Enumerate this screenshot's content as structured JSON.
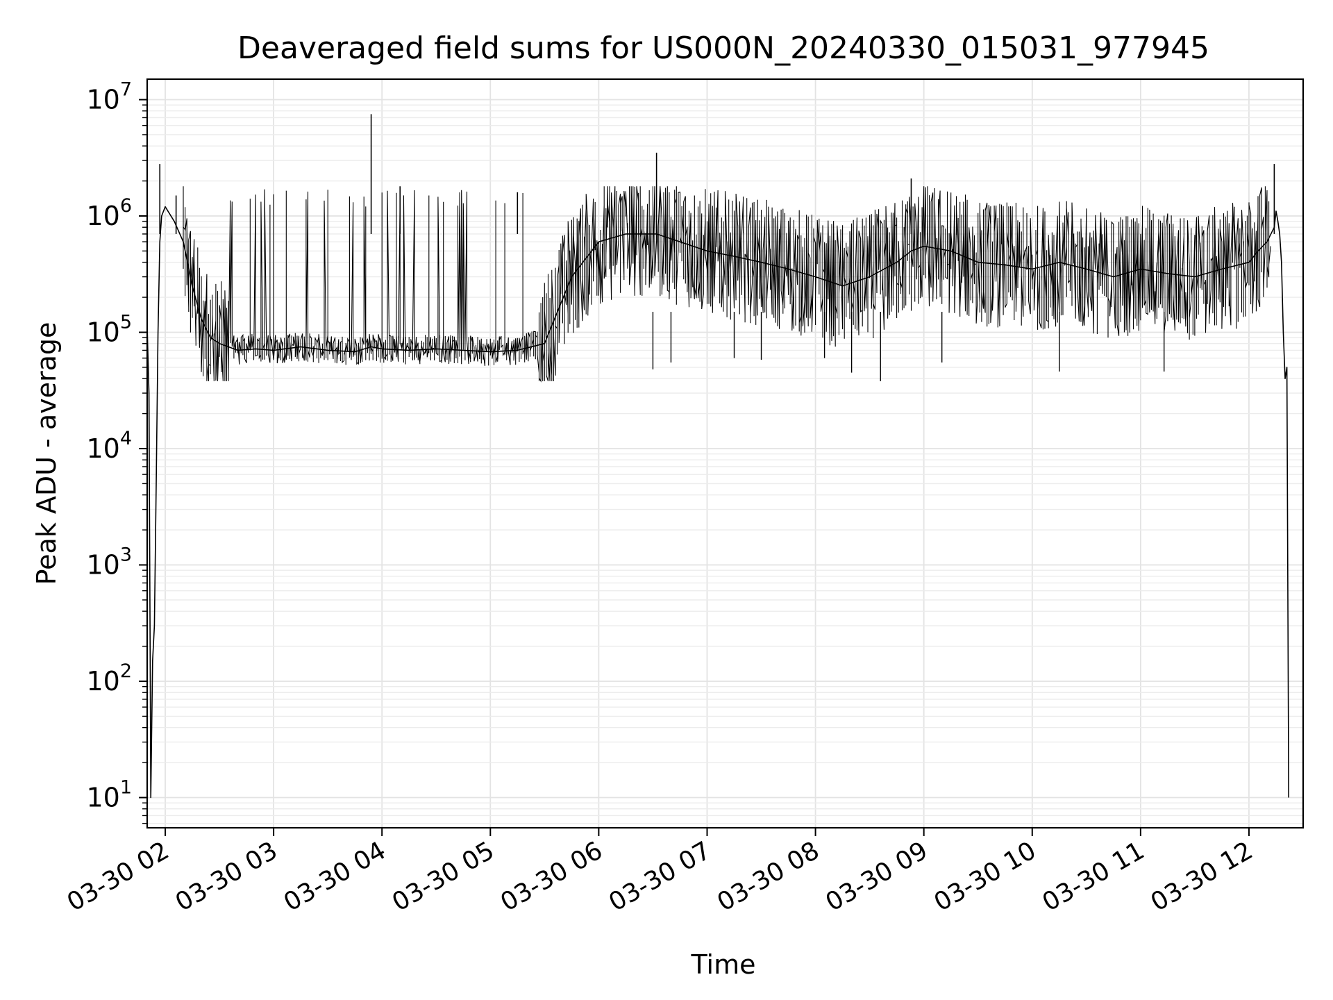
{
  "chart_data": {
    "type": "line",
    "title": "Deaveraged field sums for US000N_20240330_015031_977945",
    "xlabel": "Time",
    "ylabel": "Peak ADU - average",
    "yscale": "log",
    "xlim": [
      "2024-03-30 01:50",
      "2024-03-30 12:30"
    ],
    "ylim": [
      5.5,
      15000000
    ],
    "grid": true,
    "legend": "none",
    "line_color": "#000000",
    "x_tick_labels": [
      "03-30 02",
      "03-30 03",
      "03-30 04",
      "03-30 05",
      "03-30 06",
      "03-30 07",
      "03-30 08",
      "03-30 09",
      "03-30 10",
      "03-30 11",
      "03-30 12"
    ],
    "y_tick_labels": [
      {
        "base": "10",
        "exp": "1"
      },
      {
        "base": "10",
        "exp": "2"
      },
      {
        "base": "10",
        "exp": "3"
      },
      {
        "base": "10",
        "exp": "4"
      },
      {
        "base": "10",
        "exp": "5"
      },
      {
        "base": "10",
        "exp": "6"
      },
      {
        "base": "10",
        "exp": "7"
      }
    ],
    "series": [
      {
        "x": [
          "2024-03-30 01:50",
          "2024-03-30 01:51",
          "2024-03-30 01:52",
          "2024-03-30 01:53",
          "2024-03-30 01:54",
          "2024-03-30 01:55",
          "2024-03-30 01:56",
          "2024-03-30 01:57",
          "2024-03-30 01:58",
          "2024-03-30 02:00",
          "2024-03-30 02:05",
          "2024-03-30 02:10",
          "2024-03-30 02:15",
          "2024-03-30 02:20",
          "2024-03-30 02:25",
          "2024-03-30 02:30",
          "2024-03-30 02:35",
          "2024-03-30 02:40",
          "2024-03-30 02:50",
          "2024-03-30 03:00",
          "2024-03-30 03:15",
          "2024-03-30 03:30",
          "2024-03-30 03:45",
          "2024-03-30 03:54",
          "2024-03-30 04:00",
          "2024-03-30 04:15",
          "2024-03-30 04:30",
          "2024-03-30 04:45",
          "2024-03-30 05:00",
          "2024-03-30 05:15",
          "2024-03-30 05:30",
          "2024-03-30 05:45",
          "2024-03-30 06:00",
          "2024-03-30 06:15",
          "2024-03-30 06:32",
          "2024-03-30 06:45",
          "2024-03-30 07:00",
          "2024-03-30 07:15",
          "2024-03-30 07:30",
          "2024-03-30 07:45",
          "2024-03-30 08:00",
          "2024-03-30 08:15",
          "2024-03-30 08:30",
          "2024-03-30 08:45",
          "2024-03-30 08:53",
          "2024-03-30 09:00",
          "2024-03-30 09:15",
          "2024-03-30 09:30",
          "2024-03-30 09:45",
          "2024-03-30 10:00",
          "2024-03-30 10:15",
          "2024-03-30 10:30",
          "2024-03-30 10:45",
          "2024-03-30 11:00",
          "2024-03-30 11:15",
          "2024-03-30 11:30",
          "2024-03-30 11:45",
          "2024-03-30 12:00",
          "2024-03-30 12:05",
          "2024-03-30 12:10",
          "2024-03-30 12:14",
          "2024-03-30 12:15",
          "2024-03-30 12:16",
          "2024-03-30 12:17",
          "2024-03-30 12:18",
          "2024-03-30 12:19",
          "2024-03-30 12:20",
          "2024-03-30 12:21",
          "2024-03-30 12:22"
        ],
        "y": [
          110000,
          30000,
          10,
          150,
          300,
          5000,
          100000,
          600000,
          1000000,
          1200000,
          900000,
          600000,
          250000,
          130000,
          90000,
          80000,
          75000,
          70000,
          72000,
          70000,
          75000,
          70000,
          68000,
          75000,
          72000,
          70000,
          72000,
          70000,
          68000,
          70000,
          80000,
          300000,
          600000,
          700000,
          700000,
          600000,
          500000,
          450000,
          400000,
          350000,
          300000,
          250000,
          300000,
          400000,
          500000,
          550000,
          500000,
          400000,
          380000,
          350000,
          400000,
          350000,
          300000,
          350000,
          320000,
          300000,
          350000,
          400000,
          500000,
          600000,
          800000,
          1100000,
          900000,
          700000,
          400000,
          100000,
          40000,
          50000,
          10
        ]
      },
      {
        "x": [
          "2024-03-30 01:57",
          "2024-03-30 02:06",
          "2024-03-30 03:54",
          "2024-03-30 04:10",
          "2024-03-30 05:15",
          "2024-03-30 06:32",
          "2024-03-30 08:53",
          "2024-03-30 12:14"
        ],
        "y": [
          2800000,
          1500000,
          7500000,
          1800000,
          1600000,
          3500000,
          2100000,
          2800000
        ]
      },
      {
        "x": [
          "2024-03-30 06:30",
          "2024-03-30 06:40",
          "2024-03-30 07:15",
          "2024-03-30 07:30",
          "2024-03-30 08:05",
          "2024-03-30 08:20",
          "2024-03-30 08:36",
          "2024-03-30 09:10",
          "2024-03-30 10:15",
          "2024-03-30 11:13"
        ],
        "y": [
          48000,
          55000,
          60000,
          58000,
          60000,
          45000,
          38000,
          55000,
          46000,
          46000
        ]
      }
    ]
  }
}
